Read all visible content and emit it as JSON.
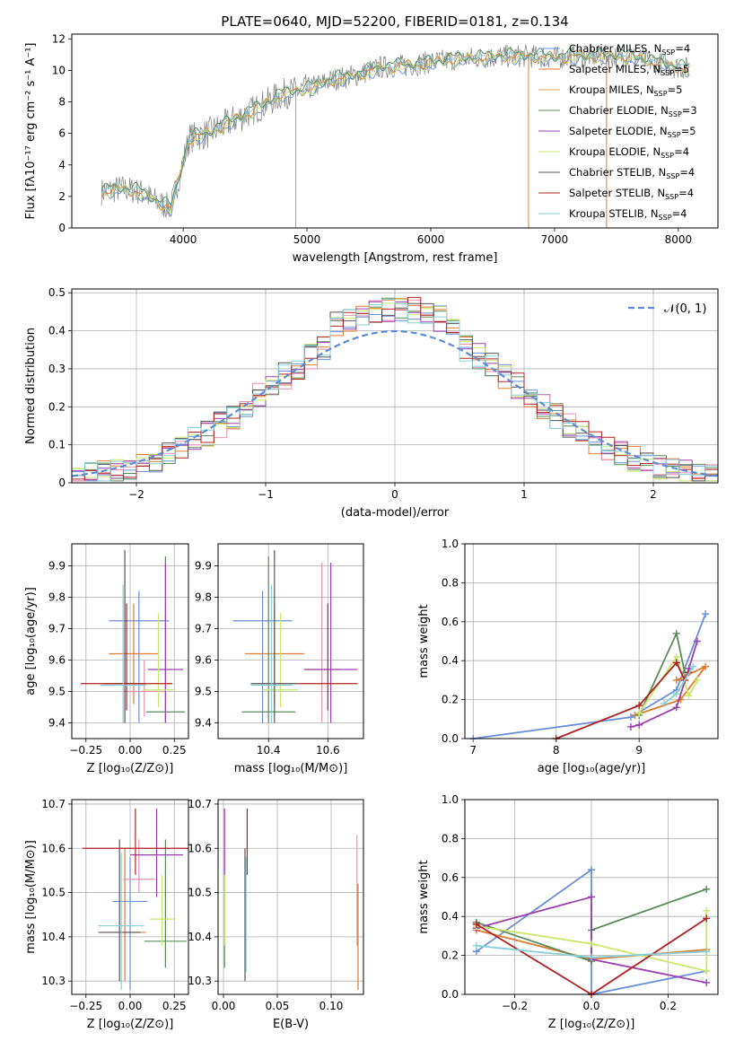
{
  "colors": [
    "#6a8fdb",
    "#e07a2e",
    "#d9776a",
    "#5a8a5a",
    "#9b3fb0",
    "#c9e86b",
    "#555555",
    "#b22222",
    "#86d0d8",
    "#e88fb5",
    "#7aa05a",
    "#6fd0c8"
  ],
  "chart_data": [
    {
      "id": "spectrum",
      "type": "line",
      "title": "PLATE=0640, MJD=52200, FIBERID=0181, z=0.134",
      "xlabel": "wavelength [Angstrom, rest frame]",
      "ylabel": "Flux [fλ10⁻¹⁷ erg cm⁻² s⁻¹ A⁻¹]",
      "xlim": [
        3100,
        8320
      ],
      "ylim": [
        0,
        12.3
      ],
      "xticks": [
        4000,
        5000,
        6000,
        7000,
        8000
      ],
      "yticks": [
        0,
        2,
        4,
        6,
        8,
        10,
        12
      ],
      "grid": false,
      "legend_position": "top-right",
      "continuum": [
        [
          3340,
          2.3
        ],
        [
          3500,
          2.5
        ],
        [
          3650,
          2.3
        ],
        [
          3800,
          1.6
        ],
        [
          3900,
          1.3
        ],
        [
          3960,
          3.0
        ],
        [
          4050,
          5.7
        ],
        [
          4200,
          6.0
        ],
        [
          4400,
          6.8
        ],
        [
          4600,
          7.6
        ],
        [
          4800,
          8.5
        ],
        [
          5000,
          8.8
        ],
        [
          5200,
          9.4
        ],
        [
          5400,
          9.7
        ],
        [
          5600,
          10.2
        ],
        [
          5800,
          10.3
        ],
        [
          6000,
          10.5
        ],
        [
          6200,
          10.7
        ],
        [
          6400,
          10.8
        ],
        [
          6600,
          10.9
        ],
        [
          6800,
          10.9
        ],
        [
          7000,
          10.8
        ],
        [
          7200,
          10.9
        ],
        [
          7400,
          10.9
        ],
        [
          7600,
          10.9
        ],
        [
          7800,
          10.5
        ],
        [
          8000,
          10.2
        ],
        [
          8090,
          10.1
        ]
      ],
      "legend": [
        {
          "label": "Chabrier MILES, N",
          "sub": "SSP",
          "count": "=4",
          "color": "#6a8fdb"
        },
        {
          "label": "Salpeter MILES, N",
          "sub": "SSP",
          "count": "=5",
          "color": "#e07a2e"
        },
        {
          "label": "Kroupa MILES, N",
          "sub": "SSP",
          "count": "=5",
          "color": "#d9a040"
        },
        {
          "label": "Chabrier ELODIE, N",
          "sub": "SSP",
          "count": "=3",
          "color": "#5a8a5a"
        },
        {
          "label": "Salpeter ELODIE, N",
          "sub": "SSP",
          "count": "=5",
          "color": "#9b3fb0"
        },
        {
          "label": "Kroupa ELODIE, N",
          "sub": "SSP",
          "count": "=4",
          "color": "#c9e86b"
        },
        {
          "label": "Chabrier STELIB, N",
          "sub": "SSP",
          "count": "=4",
          "color": "#555555"
        },
        {
          "label": "Salpeter STELIB, N",
          "sub": "SSP",
          "count": "=4",
          "color": "#b22222"
        },
        {
          "label": "Kroupa STELIB, N",
          "sub": "SSP",
          "count": "=4",
          "color": "#86d0d8"
        }
      ]
    },
    {
      "id": "residuals",
      "type": "line",
      "xlabel": "(data-model)/error",
      "ylabel": "Normed distribution",
      "xlim": [
        -2.5,
        2.5
      ],
      "ylim": [
        0,
        0.51
      ],
      "xticks": [
        -2,
        -1,
        0,
        1,
        2
      ],
      "xticklabels": [
        "−2",
        "−1",
        "0",
        "1",
        "2"
      ],
      "yticks": [
        0,
        0.1,
        0.2,
        0.3,
        0.4,
        0.5
      ],
      "grid": true,
      "legend_position": "top-right",
      "normal_label": "𝒩(0, 1)"
    },
    {
      "id": "age_vs_Z",
      "type": "scatter",
      "xlabel": "Z [log₁₀(Z/Z⊙)]",
      "ylabel": "age  [log₁₀(age/yr)]",
      "xlim": [
        -0.33,
        0.33
      ],
      "ylim": [
        9.35,
        9.97
      ],
      "xticks": [
        -0.25,
        0,
        0.25
      ],
      "xticklabels": [
        "−0.25",
        "0.00",
        "0.25"
      ],
      "yticks": [
        9.4,
        9.5,
        9.6,
        9.7,
        9.8,
        9.9
      ],
      "grid": true,
      "points": [
        {
          "x": 0.05,
          "y": 9.725,
          "xerr": 0.17,
          "yerr": [
            9.4,
            9.82
          ],
          "color": "#6a8fdb"
        },
        {
          "x": 0.02,
          "y": 9.62,
          "xerr": 0.14,
          "yerr": [
            9.46,
            9.78
          ],
          "color": "#e07a2e"
        },
        {
          "x": 0.08,
          "y": 9.5,
          "xerr": 0.12,
          "yerr": [
            9.42,
            9.6
          ],
          "color": "#e88fb5"
        },
        {
          "x": 0.2,
          "y": 9.435,
          "xerr": 0.11,
          "yerr": [
            9.4,
            9.93
          ],
          "color": "#5a8a5a"
        },
        {
          "x": 0.2,
          "y": 9.57,
          "xerr": 0.1,
          "yerr": [
            9.4,
            9.91
          ],
          "color": "#9b3fb0"
        },
        {
          "x": 0.16,
          "y": 9.505,
          "xerr": 0.09,
          "yerr": [
            9.45,
            9.75
          ],
          "color": "#c9e86b"
        },
        {
          "x": -0.03,
          "y": 9.525,
          "xerr": 0.12,
          "yerr": [
            9.4,
            9.95
          ],
          "color": "#555555"
        },
        {
          "x": -0.02,
          "y": 9.525,
          "xerr": 0.26,
          "yerr": [
            9.44,
            9.78
          ],
          "color": "#b22222"
        },
        {
          "x": -0.04,
          "y": 9.52,
          "xerr": 0.13,
          "yerr": [
            9.4,
            9.84
          ],
          "color": "#86d0d8"
        }
      ]
    },
    {
      "id": "age_vs_mass",
      "type": "scatter",
      "xlabel": "mass [log₁₀(M/M⊙)]",
      "ylabel": "",
      "xlim": [
        10.23,
        10.72
      ],
      "ylim": [
        9.35,
        9.97
      ],
      "xticks": [
        10.4,
        10.6
      ],
      "xticklabels": [
        "10.4",
        "10.6"
      ],
      "yticks": [
        9.4,
        9.5,
        9.6,
        9.7,
        9.8,
        9.9
      ],
      "grid": true,
      "points": [
        {
          "x": 10.38,
          "y": 9.725,
          "xerr": 0.1,
          "yerr": [
            9.4,
            9.82
          ],
          "color": "#6a8fdb"
        },
        {
          "x": 10.42,
          "y": 9.62,
          "xerr": 0.1,
          "yerr": [
            9.46,
            9.78
          ],
          "color": "#e07a2e"
        },
        {
          "x": 10.58,
          "y": 9.57,
          "xerr": 0.06,
          "yerr": [
            9.4,
            9.91
          ],
          "color": "#e88fb5"
        },
        {
          "x": 10.4,
          "y": 9.435,
          "xerr": 0.09,
          "yerr": [
            9.4,
            9.93
          ],
          "color": "#5a8a5a"
        },
        {
          "x": 10.61,
          "y": 9.57,
          "xerr": 0.09,
          "yerr": [
            9.4,
            9.91
          ],
          "color": "#9b3fb0"
        },
        {
          "x": 10.44,
          "y": 9.505,
          "xerr": 0.06,
          "yerr": [
            9.45,
            9.75
          ],
          "color": "#c9e86b"
        },
        {
          "x": 10.42,
          "y": 9.525,
          "xerr": 0.08,
          "yerr": [
            9.4,
            9.95
          ],
          "color": "#555555"
        },
        {
          "x": 10.6,
          "y": 9.525,
          "xerr": 0.1,
          "yerr": [
            9.44,
            9.78
          ],
          "color": "#b22222"
        },
        {
          "x": 10.41,
          "y": 9.52,
          "xerr": 0.07,
          "yerr": [
            9.4,
            9.84
          ],
          "color": "#86d0d8"
        }
      ]
    },
    {
      "id": "weight_vs_age",
      "type": "line",
      "xlabel": "age  [log₁₀(age/yr)]",
      "ylabel": "mass weight",
      "xlim": [
        6.9,
        9.95
      ],
      "ylim": [
        0,
        1
      ],
      "xticks": [
        7,
        8,
        9
      ],
      "xticklabels": [
        "7",
        "8",
        "9"
      ],
      "yticks": [
        0,
        0.2,
        0.4,
        0.6,
        0.8,
        1.0
      ],
      "yticklabels": [
        "0.0",
        "0.2",
        "0.4",
        "0.6",
        "0.8",
        "1.0"
      ],
      "grid": true,
      "series": [
        {
          "color": "#6a8fdb",
          "points": [
            [
              7.0,
              0.0
            ],
            [
              8.9,
              0.11
            ],
            [
              9.45,
              0.25
            ],
            [
              9.8,
              0.64
            ]
          ]
        },
        {
          "color": "#e07a2e",
          "points": [
            [
              8.95,
              0.12
            ],
            [
              9.5,
              0.2
            ],
            [
              9.8,
              0.37
            ],
            [
              9.45,
              0.3
            ]
          ]
        },
        {
          "color": "#5a8a5a",
          "points": [
            [
              9.0,
              0.12
            ],
            [
              9.45,
              0.54
            ],
            [
              9.55,
              0.34
            ]
          ]
        },
        {
          "color": "#9b3fb0",
          "points": [
            [
              8.9,
              0.06
            ],
            [
              9.0,
              0.07
            ],
            [
              9.45,
              0.16
            ],
            [
              9.6,
              0.36
            ],
            [
              9.7,
              0.5
            ]
          ]
        },
        {
          "color": "#c9e86b",
          "points": [
            [
              9.0,
              0.13
            ],
            [
              9.45,
              0.42
            ],
            [
              9.6,
              0.22
            ],
            [
              9.7,
              0.3
            ]
          ]
        },
        {
          "color": "#b22222",
          "points": [
            [
              8.0,
              0.0
            ],
            [
              9.0,
              0.17
            ],
            [
              9.45,
              0.39
            ],
            [
              9.55,
              0.3
            ],
            [
              9.6,
              0.34
            ]
          ]
        },
        {
          "color": "#86d0d8",
          "points": [
            [
              9.3,
              0.18
            ],
            [
              9.45,
              0.23
            ],
            [
              9.65,
              0.37
            ]
          ]
        }
      ]
    },
    {
      "id": "mass_vs_Z",
      "type": "scatter",
      "xlabel": "Z [log₁₀(Z/Z⊙)]",
      "ylabel": "mass [log₁₀(M/M⊙)]",
      "xlim": [
        -0.33,
        0.33
      ],
      "ylim": [
        10.27,
        10.71
      ],
      "xticks": [
        -0.25,
        0,
        0.25
      ],
      "xticklabels": [
        "−0.25",
        "0.00",
        "0.25"
      ],
      "yticks": [
        10.3,
        10.4,
        10.5,
        10.6,
        10.7
      ],
      "grid": true,
      "points": [
        {
          "x": 0.0,
          "y": 10.48,
          "xerr": 0.1,
          "yerr": [
            10.28,
            10.58
          ],
          "color": "#6a8fdb"
        },
        {
          "x": -0.03,
          "y": 10.41,
          "xerr": 0.12,
          "yerr": [
            10.3,
            10.6
          ],
          "color": "#e07a2e"
        },
        {
          "x": 0.05,
          "y": 10.53,
          "xerr": 0.09,
          "yerr": [
            10.5,
            10.62
          ],
          "color": "#e88fb5"
        },
        {
          "x": 0.2,
          "y": 10.39,
          "xerr": 0.12,
          "yerr": [
            10.33,
            10.62
          ],
          "color": "#5a8a5a"
        },
        {
          "x": 0.15,
          "y": 10.585,
          "xerr": 0.15,
          "yerr": [
            10.49,
            10.69
          ],
          "color": "#9b3fb0"
        },
        {
          "x": 0.18,
          "y": 10.44,
          "xerr": 0.07,
          "yerr": [
            10.38,
            10.54
          ],
          "color": "#c9e86b"
        },
        {
          "x": -0.06,
          "y": 10.41,
          "xerr": 0.12,
          "yerr": [
            10.3,
            10.62
          ],
          "color": "#555555"
        },
        {
          "x": 0.03,
          "y": 10.6,
          "xerr": 0.3,
          "yerr": [
            10.54,
            10.69
          ],
          "color": "#b22222"
        },
        {
          "x": -0.05,
          "y": 10.425,
          "xerr": 0.13,
          "yerr": [
            10.28,
            10.59
          ],
          "color": "#86d0d8"
        }
      ]
    },
    {
      "id": "mass_vs_ebv",
      "type": "scatter",
      "xlabel": "E(B-V)",
      "ylabel": "",
      "xlim": [
        -0.005,
        0.13
      ],
      "ylim": [
        10.27,
        10.71
      ],
      "xticks": [
        0.0,
        0.05,
        0.1
      ],
      "xticklabels": [
        "0.00",
        "0.05",
        "0.10"
      ],
      "yticks": [
        10.3,
        10.4,
        10.5,
        10.6,
        10.7
      ],
      "grid": true,
      "points": [
        {
          "x": 0.001,
          "y": 10.48,
          "xerr": 0,
          "yerr": [
            10.33,
            10.54
          ],
          "color": "#5a8a5a"
        },
        {
          "x": 0.001,
          "y": 10.6,
          "xerr": 0,
          "yerr": [
            10.54,
            10.69
          ],
          "color": "#9b3fb0"
        },
        {
          "x": 0.001,
          "y": 10.45,
          "xerr": 0,
          "yerr": [
            10.38,
            10.54
          ],
          "color": "#c9e86b"
        },
        {
          "x": 0.022,
          "y": 10.6,
          "xerr": 0,
          "yerr": [
            10.54,
            10.69
          ],
          "color": "#b22222"
        },
        {
          "x": 0.02,
          "y": 10.45,
          "xerr": 0,
          "yerr": [
            10.3,
            10.6
          ],
          "color": "#555555"
        },
        {
          "x": 0.021,
          "y": 10.45,
          "xerr": 0,
          "yerr": [
            10.32,
            10.58
          ],
          "color": "#86d0d8"
        },
        {
          "x": 0.124,
          "y": 10.5,
          "xerr": 0,
          "yerr": [
            10.38,
            10.63
          ],
          "color": "#e88fb5"
        },
        {
          "x": 0.125,
          "y": 10.4,
          "xerr": 0,
          "yerr": [
            10.28,
            10.52
          ],
          "color": "#e07a2e"
        }
      ]
    },
    {
      "id": "weight_vs_Z",
      "type": "line",
      "xlabel": "Z [log₁₀(Z/Z⊙)]",
      "ylabel": "mass weight",
      "xlim": [
        -0.33,
        0.33
      ],
      "ylim": [
        0,
        1
      ],
      "xticks": [
        -0.2,
        0,
        0.2
      ],
      "xticklabels": [
        "−0.2",
        "0.0",
        "0.2"
      ],
      "yticks": [
        0,
        0.2,
        0.4,
        0.6,
        0.8,
        1.0
      ],
      "yticklabels": [
        "0.0",
        "0.2",
        "0.4",
        "0.6",
        "0.8",
        "1.0"
      ],
      "grid": true,
      "series": [
        {
          "color": "#6a8fdb",
          "points": [
            [
              -0.3,
              0.22
            ],
            [
              0.0,
              0.64
            ],
            [
              0.0,
              0.0
            ],
            [
              0.3,
              0.12
            ]
          ]
        },
        {
          "color": "#e07a2e",
          "points": [
            [
              -0.3,
              0.33
            ],
            [
              0.0,
              0.18
            ],
            [
              0.3,
              0.23
            ]
          ]
        },
        {
          "color": "#5a8a5a",
          "points": [
            [
              -0.3,
              0.37
            ],
            [
              0.0,
              0.17
            ],
            [
              0.0,
              0.33
            ],
            [
              0.3,
              0.54
            ]
          ]
        },
        {
          "color": "#9b3fb0",
          "points": [
            [
              -0.3,
              0.34
            ],
            [
              0.0,
              0.5
            ],
            [
              0.0,
              0.18
            ],
            [
              0.3,
              0.06
            ]
          ]
        },
        {
          "color": "#c9e86b",
          "points": [
            [
              -0.3,
              0.35
            ],
            [
              0.0,
              0.26
            ],
            [
              0.3,
              0.12
            ],
            [
              0.3,
              0.43
            ]
          ]
        },
        {
          "color": "#b22222",
          "points": [
            [
              -0.3,
              0.36
            ],
            [
              0.0,
              0.0
            ],
            [
              0.3,
              0.39
            ]
          ]
        },
        {
          "color": "#86d0d8",
          "points": [
            [
              -0.3,
              0.25
            ],
            [
              0.0,
              0.19
            ],
            [
              0.3,
              0.22
            ]
          ]
        }
      ]
    }
  ]
}
